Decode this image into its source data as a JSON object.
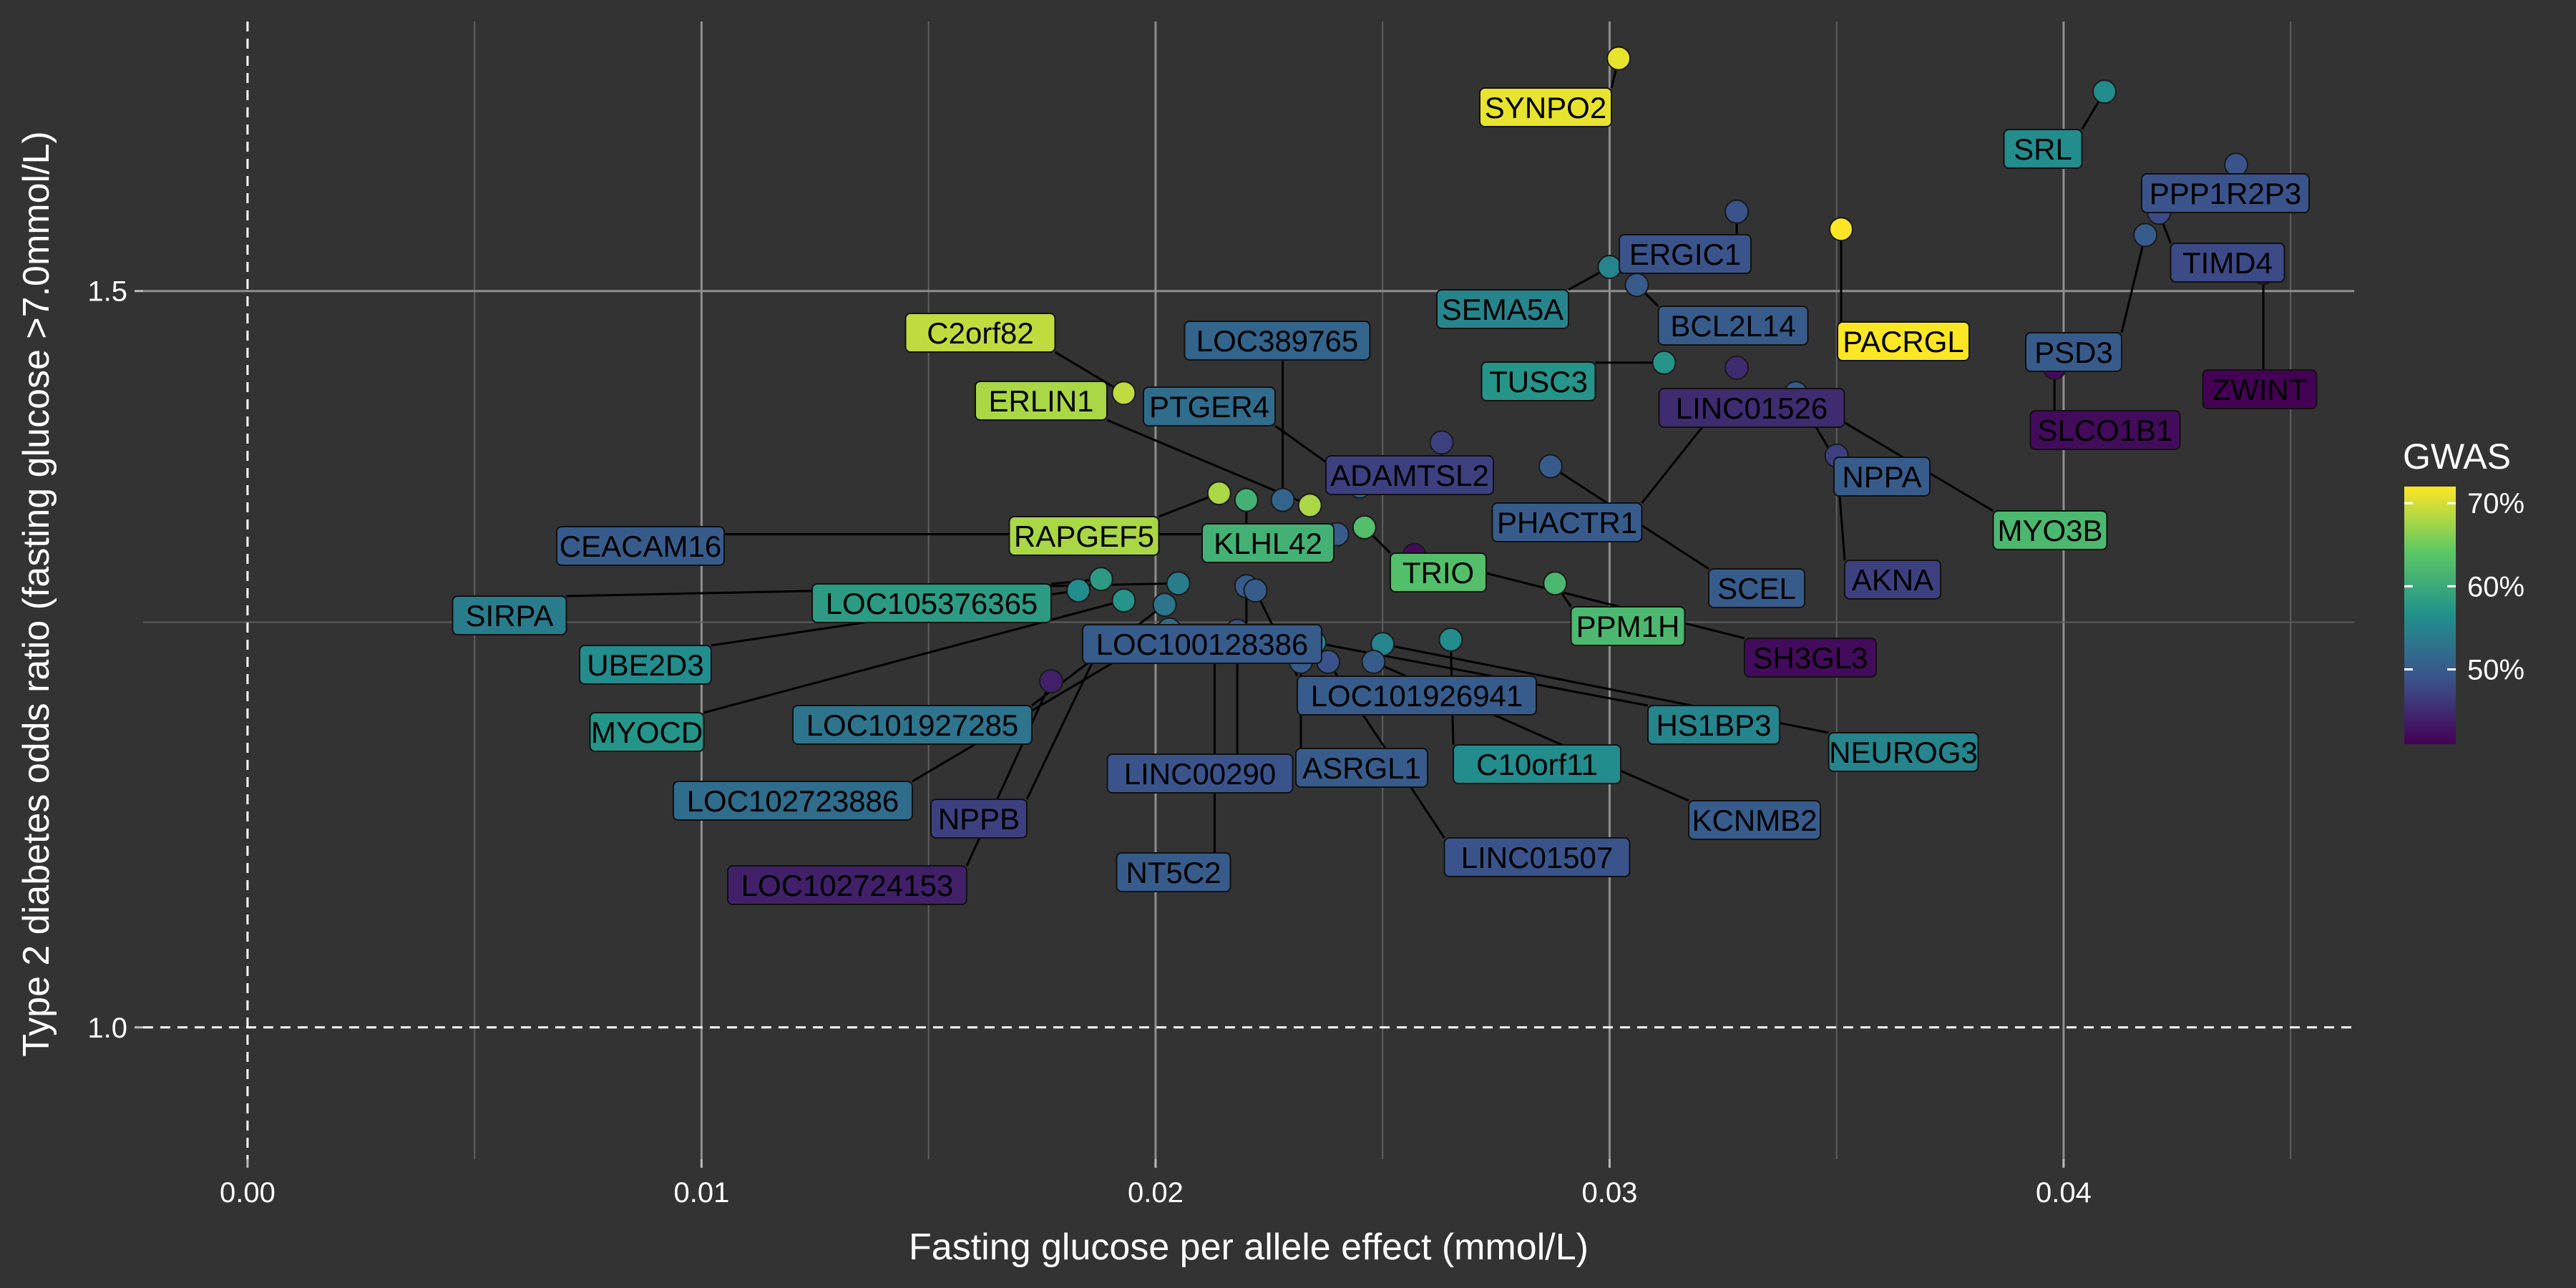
{
  "chart_data": {
    "type": "scatter",
    "xlabel": "Fasting glucose per allele effect (mmol/L)",
    "ylabel": "Type 2 diabetes odds ratio (fasting glucose >7.0mmol/L)",
    "x_ticks": [
      "0.00",
      "0.01",
      "0.02",
      "0.03",
      "0.04"
    ],
    "y_ticks": [
      "1.0",
      "1.5"
    ],
    "xlim": [
      -0.0023,
      0.0464
    ],
    "ylim": [
      0.93,
      1.74
    ],
    "y_scale": "log",
    "legend": {
      "title": "GWAS",
      "ticks": [
        "70%",
        "60%",
        "50%"
      ],
      "range": [
        41,
        72
      ],
      "placement": "right"
    },
    "reference_lines": {
      "x": 0,
      "y": 1.0,
      "style": "dashed"
    },
    "points": [
      {
        "label": "SYNPO2",
        "x": 0.0302,
        "y": 1.705,
        "gwas": 71
      },
      {
        "label": "SRL",
        "x": 0.0409,
        "y": 1.674,
        "gwas": 56
      },
      {
        "label": "PPP1R2P3",
        "x": 0.0438,
        "y": 1.608,
        "gwas": 49
      },
      {
        "label": "ERGIC1",
        "x": 0.0328,
        "y": 1.567,
        "gwas": 49
      },
      {
        "label": "TIMD4",
        "x": 0.0421,
        "y": 1.566,
        "gwas": 48
      },
      {
        "label": "PACRGL",
        "x": 0.0351,
        "y": 1.552,
        "gwas": 72
      },
      {
        "label": "PSD3",
        "x": 0.0418,
        "y": 1.547,
        "gwas": 50
      },
      {
        "label": "SEMA5A",
        "x": 0.03,
        "y": 1.52,
        "gwas": 55
      },
      {
        "label": "ZWINT",
        "x": 0.0444,
        "y": 1.515,
        "gwas": 41
      },
      {
        "label": "BCL2L14",
        "x": 0.0306,
        "y": 1.505,
        "gwas": 50
      },
      {
        "label": "TUSC3",
        "x": 0.0312,
        "y": 1.442,
        "gwas": 57
      },
      {
        "label": "LINC01526",
        "x": 0.0328,
        "y": 1.438,
        "gwas": 45
      },
      {
        "label": "SLCO1B1",
        "x": 0.0398,
        "y": 1.438,
        "gwas": 42
      },
      {
        "label": "C2orf82",
        "x": 0.0193,
        "y": 1.418,
        "gwas": 69
      },
      {
        "label": "NPPA",
        "x": 0.0341,
        "y": 1.418,
        "gwas": 50
      },
      {
        "label": "PHACTR1",
        "x": 0.0325,
        "y": 1.412,
        "gwas": 50
      },
      {
        "label": "MYO3B",
        "x": 0.0348,
        "y": 1.403,
        "gwas": 62
      },
      {
        "label": "ADAMTSL2",
        "x": 0.0263,
        "y": 1.38,
        "gwas": 47
      },
      {
        "label": "AKNA",
        "x": 0.035,
        "y": 1.37,
        "gwas": 47
      },
      {
        "label": "SCEL",
        "x": 0.0287,
        "y": 1.362,
        "gwas": 50
      },
      {
        "label": "PTGER4",
        "x": 0.0245,
        "y": 1.347,
        "gwas": 52
      },
      {
        "label": "RAPGEF5",
        "x": 0.0214,
        "y": 1.342,
        "gwas": 68
      },
      {
        "label": "KLHL42",
        "x": 0.022,
        "y": 1.337,
        "gwas": 61
      },
      {
        "label": "LOC389765",
        "x": 0.0228,
        "y": 1.337,
        "gwas": 51
      },
      {
        "label": "ERLIN1",
        "x": 0.0234,
        "y": 1.333,
        "gwas": 68
      },
      {
        "label": "TRIO",
        "x": 0.0246,
        "y": 1.317,
        "gwas": 63
      },
      {
        "label": "CEACAM16",
        "x": 0.024,
        "y": 1.312,
        "gwas": 50
      },
      {
        "label": "SH3GL3",
        "x": 0.0257,
        "y": 1.297,
        "gwas": 42
      },
      {
        "label": "PPM1H",
        "x": 0.0288,
        "y": 1.277,
        "gwas": 62
      },
      {
        "label": "LOC105376365",
        "x": 0.0188,
        "y": 1.28,
        "gwas": 58
      },
      {
        "label": "SIRPA",
        "x": 0.0205,
        "y": 1.277,
        "gwas": 54
      },
      {
        "label": "LOC100128386",
        "x": 0.022,
        "y": 1.275,
        "gwas": 50
      },
      {
        "label": "UBE2D3",
        "x": 0.0183,
        "y": 1.272,
        "gwas": 56
      },
      {
        "label": "LOC101926941",
        "x": 0.0222,
        "y": 1.272,
        "gwas": 50
      },
      {
        "label": "MYOCD",
        "x": 0.0193,
        "y": 1.265,
        "gwas": 57
      },
      {
        "label": "LOC101927285",
        "x": 0.0202,
        "y": 1.262,
        "gwas": 53
      },
      {
        "label": "C10orf11",
        "x": 0.0265,
        "y": 1.238,
        "gwas": 56
      },
      {
        "label": "HS1BP3",
        "x": 0.0235,
        "y": 1.236,
        "gwas": 55
      },
      {
        "label": "NEUROG3",
        "x": 0.025,
        "y": 1.235,
        "gwas": 55
      },
      {
        "label": "LINC00290",
        "x": 0.0218,
        "y": 1.244,
        "gwas": 49
      },
      {
        "label": "NPPB",
        "x": 0.0188,
        "y": 1.235,
        "gwas": 47
      },
      {
        "label": "NT5C2",
        "x": 0.0213,
        "y": 1.233,
        "gwas": 50
      },
      {
        "label": "ASRGL1",
        "x": 0.0232,
        "y": 1.223,
        "gwas": 50
      },
      {
        "label": "KCNMB2",
        "x": 0.0248,
        "y": 1.223,
        "gwas": 50
      },
      {
        "label": "LINC01507",
        "x": 0.0238,
        "y": 1.223,
        "gwas": 49
      },
      {
        "label": "LOC102723886",
        "x": 0.0203,
        "y": 1.245,
        "gwas": 52
      },
      {
        "label": "LOC102724153",
        "x": 0.0177,
        "y": 1.21,
        "gwas": 44
      }
    ]
  }
}
